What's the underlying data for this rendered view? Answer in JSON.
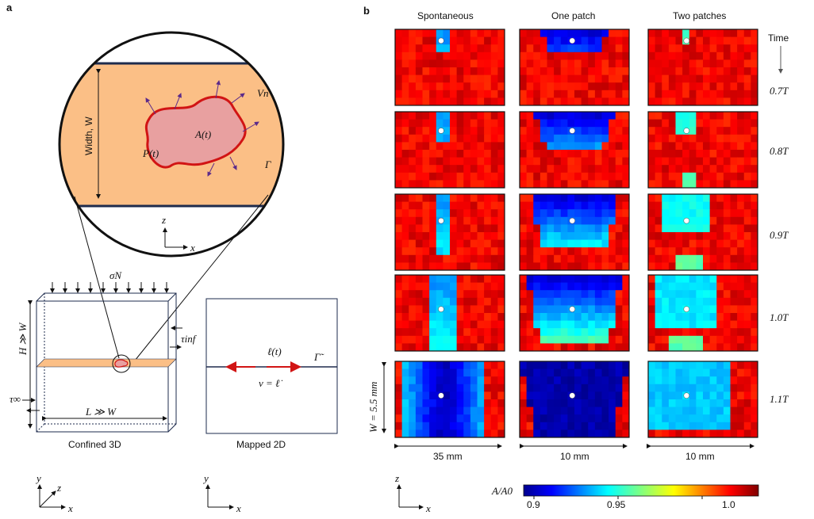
{
  "panel_a": {
    "letter": "a",
    "zoom": {
      "width_label": "Width, W",
      "area_label": "A(t)",
      "perimeter_label": "P(t)",
      "velocity_label": "Vn",
      "gamma_label": "Γ",
      "axis_z": "z",
      "axis_x": "x"
    },
    "confined": {
      "sigma_label": "σN",
      "h_label": "H ≫ W",
      "tau_inf_label": "τinf",
      "tau_infty_label": "τ∞",
      "l_label": "L ≫ W",
      "caption": "Confined 3D",
      "axis_y": "y",
      "axis_z": "z",
      "axis_x": "x"
    },
    "mapped": {
      "ell_label": "ℓ(t)",
      "gamma_label": "Γ̃",
      "v_label": "v = ℓ̇",
      "caption": "Mapped 2D",
      "axis_y": "y",
      "axis_x": "x"
    }
  },
  "panel_b": {
    "letter": "b",
    "columns": [
      "Spontaneous",
      "One patch",
      "Two patches"
    ],
    "time_header": "Time",
    "times": [
      "0.7T",
      "0.8T",
      "0.9T",
      "1.0T",
      "1.1T"
    ],
    "scale_w": "W = 5.5 mm",
    "scale_bars": [
      "35 mm",
      "10 mm",
      "10 mm"
    ],
    "axis_z": "z",
    "axis_x": "x",
    "colorbar": {
      "label": "A/A0",
      "ticks": [
        "0.9",
        "0.95",
        "1.0"
      ],
      "min": 0.88,
      "max": 1.02
    }
  },
  "colors": {
    "zoom_fill": "#fbbf86",
    "patch_fill": "#e8a0a0",
    "patch_stroke": "#d11414",
    "arrow": "#5b2a8a",
    "frame_line": "#1e2b4d",
    "ell_arrow": "#d11414"
  }
}
